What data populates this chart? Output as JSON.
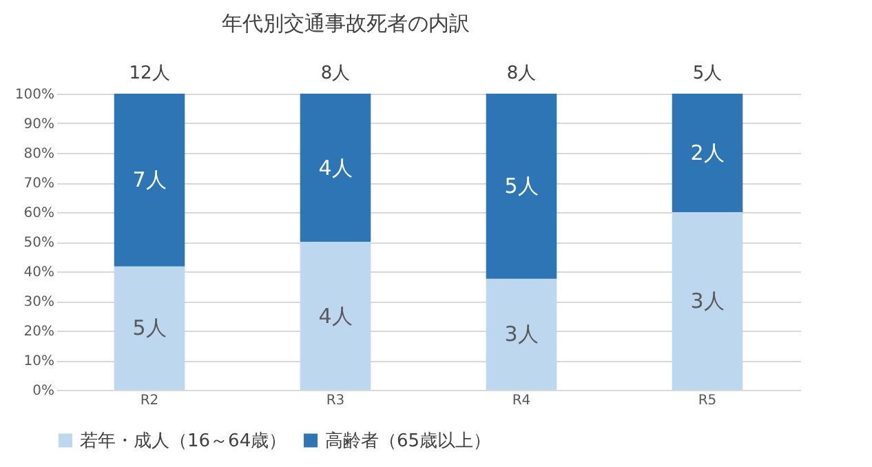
{
  "chart_data": {
    "type": "bar",
    "stacked": true,
    "title": "年代別交通事故死者の内訳",
    "categories": [
      "R2",
      "R3",
      "R4",
      "R5"
    ],
    "series": [
      {
        "name": "若年・成人（16～64歳）",
        "color": "#bdd7ee",
        "values": [
          41.7,
          50,
          37.5,
          60
        ]
      },
      {
        "name": "高齢者（65歳以上）",
        "color": "#2e75b6",
        "values": [
          58.3,
          50,
          62.5,
          40
        ]
      }
    ],
    "annotations": [
      "5人",
      "4人",
      "3人",
      "3人",
      "7人",
      "4人",
      "5人",
      "2人",
      {
        "text": "12人",
        "x": "R2",
        "y": 100
      },
      {
        "text": "8人",
        "x": "R3",
        "y": 100
      },
      {
        "text": "8人",
        "x": "R4",
        "y": 100
      },
      {
        "text": "5人",
        "x": "R5",
        "y": 100
      }
    ],
    "ylim": [
      0,
      100
    ],
    "yticks": [
      {
        "value": 0,
        "label": "0%"
      },
      {
        "value": 10,
        "label": "10%"
      },
      {
        "value": 20,
        "label": "20%"
      },
      {
        "value": 30,
        "label": "30%"
      },
      {
        "value": 40,
        "label": "40%"
      },
      {
        "value": 50,
        "label": "50%"
      },
      {
        "value": 60,
        "label": "60%"
      },
      {
        "value": 70,
        "label": "70%"
      },
      {
        "value": 80,
        "label": "80%"
      },
      {
        "value": 90,
        "label": "90%"
      },
      {
        "value": 100,
        "label": "100%"
      }
    ],
    "grid": "y",
    "legend": "bottom"
  }
}
